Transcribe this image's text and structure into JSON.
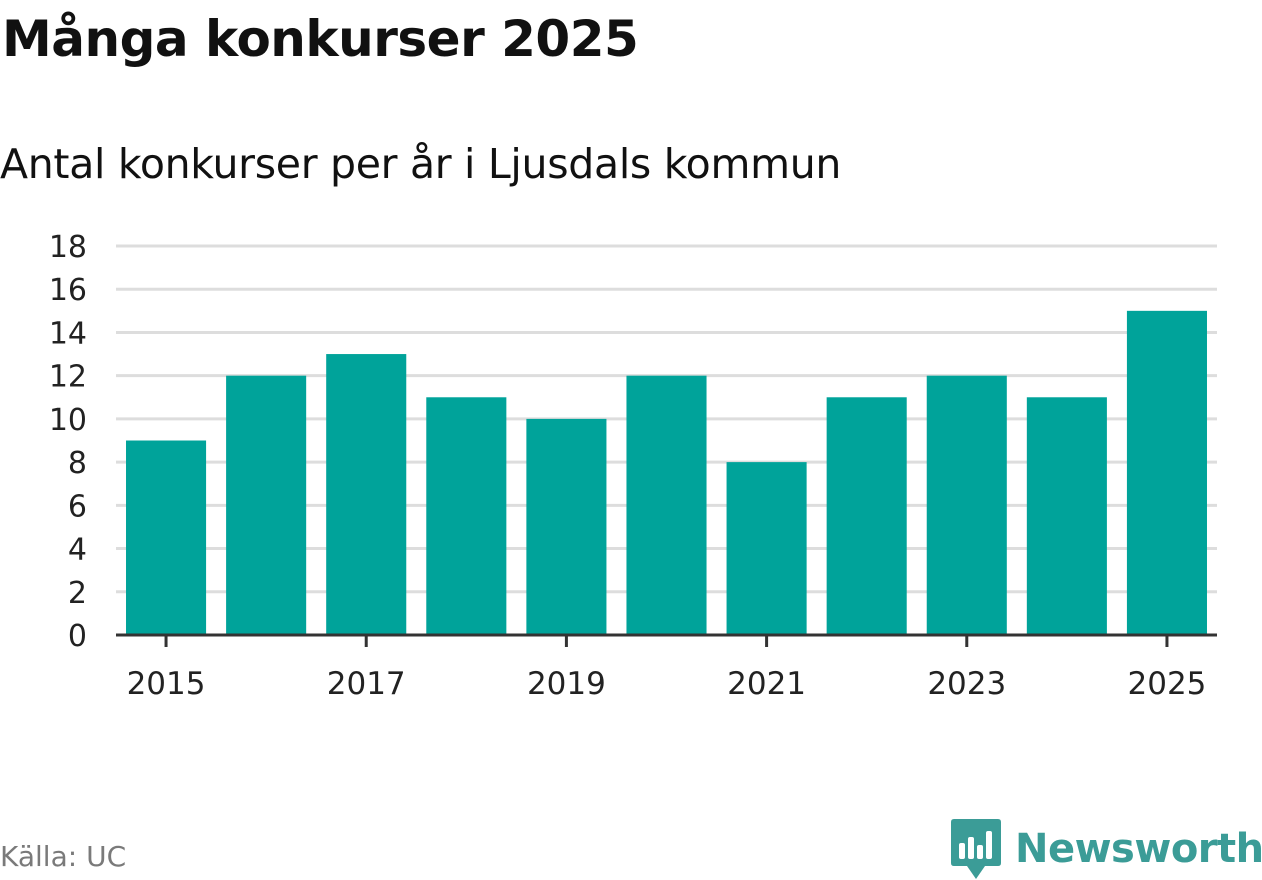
{
  "header": {
    "title": "Många konkurser 2025",
    "subtitle": "Antal konkurser per år i Ljusdals kommun"
  },
  "footer": {
    "source": "Källa: UC",
    "brand": "Newsworthy"
  },
  "colors": {
    "bar": "#00a39a",
    "grid": "#dddddd",
    "axis": "#333333",
    "brand": "#3b9c97"
  },
  "chart_data": {
    "type": "bar",
    "title": "Många konkurser 2025",
    "subtitle": "Antal konkurser per år i Ljusdals kommun",
    "categories": [
      "2015",
      "2016",
      "2017",
      "2018",
      "2019",
      "2020",
      "2021",
      "2022",
      "2023",
      "2024",
      "2025"
    ],
    "values": [
      9,
      12,
      13,
      11,
      10,
      12,
      8,
      11,
      12,
      11,
      15
    ],
    "x_tick_labels": [
      "2015",
      "2017",
      "2019",
      "2021",
      "2023",
      "2025"
    ],
    "y_ticks": [
      0,
      2,
      4,
      6,
      8,
      10,
      12,
      14,
      16,
      18
    ],
    "ylim": [
      0,
      18
    ],
    "xlabel": "",
    "ylabel": "",
    "grid": true,
    "legend": "none"
  }
}
